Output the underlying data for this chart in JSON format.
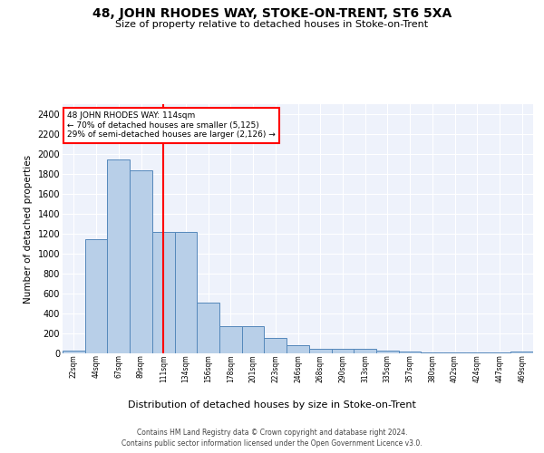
{
  "title": "48, JOHN RHODES WAY, STOKE-ON-TRENT, ST6 5XA",
  "subtitle": "Size of property relative to detached houses in Stoke-on-Trent",
  "xlabel": "Distribution of detached houses by size in Stoke-on-Trent",
  "ylabel": "Number of detached properties",
  "bar_values": [
    30,
    1150,
    1950,
    1840,
    1220,
    1220,
    510,
    270,
    270,
    155,
    80,
    50,
    45,
    45,
    25,
    15,
    5,
    5,
    5,
    5,
    20
  ],
  "bar_labels": [
    "22sqm",
    "44sqm",
    "67sqm",
    "89sqm",
    "111sqm",
    "134sqm",
    "156sqm",
    "178sqm",
    "201sqm",
    "223sqm",
    "246sqm",
    "268sqm",
    "290sqm",
    "313sqm",
    "335sqm",
    "357sqm",
    "380sqm",
    "402sqm",
    "424sqm",
    "447sqm",
    "469sqm"
  ],
  "bar_color": "#b8cfe8",
  "bar_edge_color": "#5588bb",
  "vline_x_index": 4,
  "vline_color": "red",
  "annotation_text": "48 JOHN RHODES WAY: 114sqm\n← 70% of detached houses are smaller (5,125)\n29% of semi-detached houses are larger (2,126) →",
  "annotation_box_facecolor": "white",
  "annotation_box_edgecolor": "red",
  "ylim": [
    0,
    2500
  ],
  "yticks": [
    0,
    200,
    400,
    600,
    800,
    1000,
    1200,
    1400,
    1600,
    1800,
    2000,
    2200,
    2400
  ],
  "footer_line1": "Contains HM Land Registry data © Crown copyright and database right 2024.",
  "footer_line2": "Contains public sector information licensed under the Open Government Licence v3.0.",
  "plot_bg_color": "#eef2fb",
  "grid_color": "#ffffff"
}
